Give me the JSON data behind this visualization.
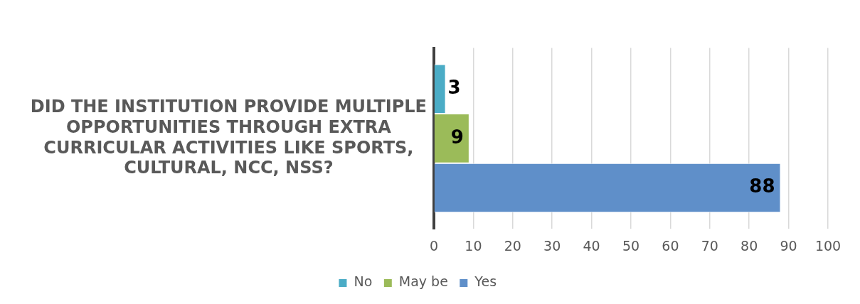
{
  "chart_data": {
    "type": "bar",
    "orientation": "horizontal",
    "categories": [
      "DID THE INSTITUTION PROVIDE MULTIPLE OPPORTUNITIES THROUGH EXTRA CURRICULAR ACTIVITIES LIKE SPORTS, CULTURAL, NCC, NSS?"
    ],
    "series": [
      {
        "name": "No",
        "color": "#4bacc6",
        "values": [
          3
        ]
      },
      {
        "name": "May be",
        "color": "#9bbb59",
        "values": [
          9
        ]
      },
      {
        "name": "Yes",
        "color": "#5f8fc9",
        "values": [
          88
        ]
      }
    ],
    "xlim": [
      0,
      100
    ],
    "xticks": [
      0,
      10,
      20,
      30,
      40,
      50,
      60,
      70,
      80,
      90,
      100
    ],
    "grid": "x",
    "legend": "bottom",
    "data_labels": true
  }
}
